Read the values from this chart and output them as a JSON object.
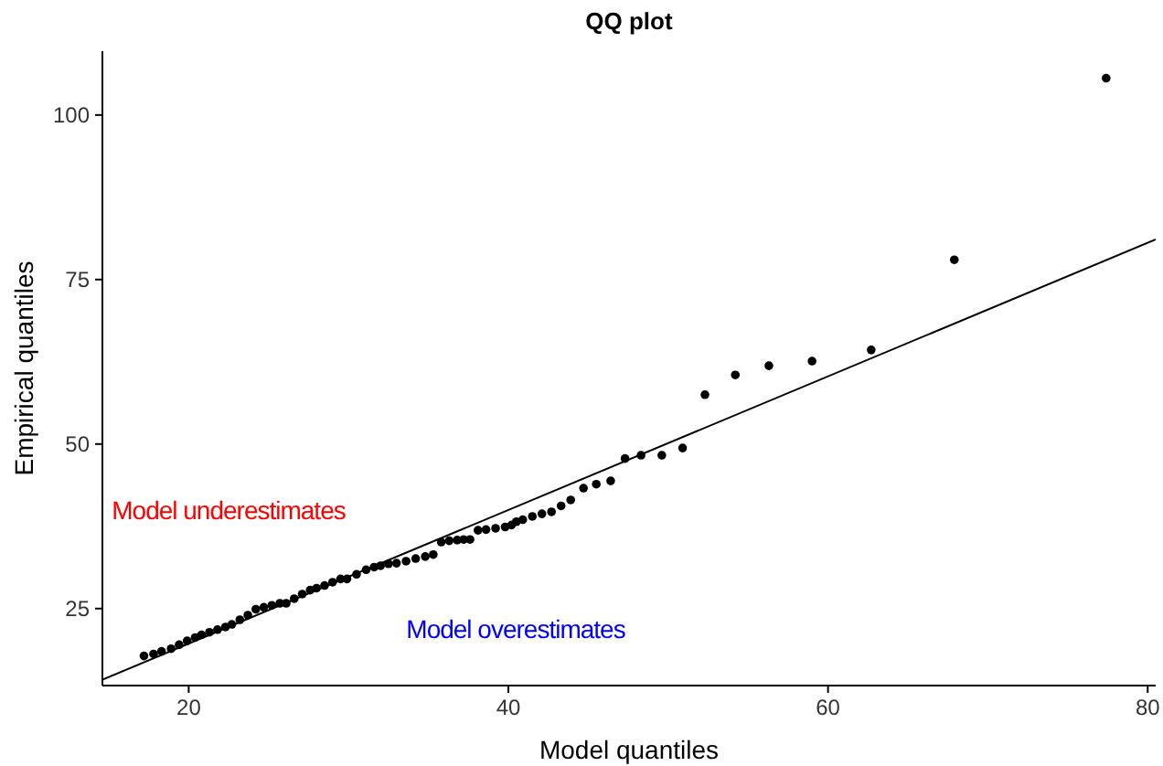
{
  "chart_data": {
    "type": "scatter",
    "title": "QQ plot",
    "xlabel": "Model quantiles",
    "ylabel": "Empirical quantiles",
    "xlim": [
      14.6,
      80.5
    ],
    "ylim": [
      13.3,
      109.7
    ],
    "xticks": [
      20,
      40,
      60,
      80
    ],
    "yticks": [
      25,
      50,
      75,
      100
    ],
    "grid": false,
    "series": [
      {
        "color": "#000000",
        "marker": "circle",
        "x": [
          17.2,
          17.8,
          18.3,
          18.9,
          19.4,
          19.9,
          20.4,
          20.8,
          21.3,
          21.8,
          22.3,
          22.7,
          23.2,
          23.7,
          24.2,
          24.7,
          25.2,
          25.7,
          26.1,
          26.6,
          27.1,
          27.6,
          28.0,
          28.5,
          29.0,
          29.5,
          29.9,
          30.5,
          31.1,
          31.6,
          32.0,
          32.5,
          33.0,
          33.6,
          34.2,
          34.8,
          35.3,
          35.8,
          36.3,
          36.8,
          37.2,
          37.6,
          38.1,
          38.6,
          39.2,
          39.8,
          40.2,
          40.5,
          40.9,
          41.5,
          42.1,
          42.7,
          43.3,
          43.9,
          44.7,
          45.5,
          46.4,
          47.3,
          48.3,
          49.6,
          50.9,
          52.3,
          54.2,
          56.3,
          59.0,
          62.7,
          67.9,
          77.4
        ],
        "values": [
          17.8,
          18.1,
          18.5,
          18.9,
          19.5,
          20.1,
          20.6,
          21.0,
          21.4,
          21.8,
          22.2,
          22.6,
          23.3,
          24.0,
          24.9,
          25.2,
          25.5,
          25.8,
          25.8,
          26.5,
          27.2,
          27.8,
          28.1,
          28.5,
          29.0,
          29.5,
          29.5,
          30.2,
          30.9,
          31.3,
          31.5,
          31.8,
          31.9,
          32.2,
          32.6,
          32.9,
          33.2,
          35.1,
          35.3,
          35.4,
          35.5,
          35.5,
          36.9,
          37.0,
          37.2,
          37.4,
          37.7,
          38.2,
          38.5,
          39.0,
          39.4,
          39.7,
          40.6,
          41.5,
          43.3,
          43.9,
          44.4,
          47.8,
          48.3,
          48.3,
          49.4,
          57.5,
          60.5,
          61.9,
          62.6,
          64.3,
          78.0,
          105.6
        ]
      },
      {
        "type": "line",
        "color": "#000000",
        "marker": "none",
        "x": [
          14.6,
          80.5
        ],
        "values": [
          14.2,
          81.1
        ]
      }
    ],
    "annotations": [
      "Model underestimates",
      "Model overestimates"
    ]
  }
}
